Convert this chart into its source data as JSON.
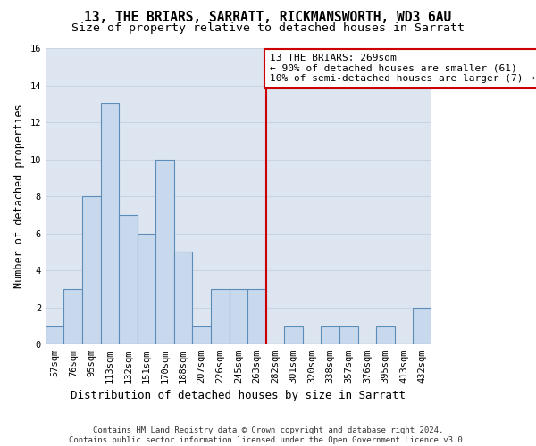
{
  "title": "13, THE BRIARS, SARRATT, RICKMANSWORTH, WD3 6AU",
  "subtitle": "Size of property relative to detached houses in Sarratt",
  "xlabel": "Distribution of detached houses by size in Sarratt",
  "ylabel": "Number of detached properties",
  "categories": [
    "57sqm",
    "76sqm",
    "95sqm",
    "113sqm",
    "132sqm",
    "151sqm",
    "170sqm",
    "188sqm",
    "207sqm",
    "226sqm",
    "245sqm",
    "263sqm",
    "282sqm",
    "301sqm",
    "320sqm",
    "338sqm",
    "357sqm",
    "376sqm",
    "395sqm",
    "413sqm",
    "432sqm"
  ],
  "values": [
    1,
    3,
    8,
    13,
    7,
    6,
    10,
    5,
    1,
    3,
    3,
    3,
    0,
    1,
    0,
    1,
    1,
    0,
    1,
    0,
    2
  ],
  "bar_color": "#c9d9ed",
  "bar_edge_color": "#5b8db8",
  "vline_x": 11.5,
  "vline_color": "#cc0000",
  "annotation_line1": "13 THE BRIARS: 269sqm",
  "annotation_line2": "← 90% of detached houses are smaller (61)",
  "annotation_line3": "10% of semi-detached houses are larger (7) →",
  "annotation_box_color": "#cc0000",
  "ylim": [
    0,
    16
  ],
  "yticks": [
    0,
    2,
    4,
    6,
    8,
    10,
    12,
    14,
    16
  ],
  "background_color": "#dde5f0",
  "grid_color": "#c8d4e3",
  "fig_background": "#ffffff",
  "footnote": "Contains HM Land Registry data © Crown copyright and database right 2024.\nContains public sector information licensed under the Open Government Licence v3.0.",
  "title_fontsize": 10.5,
  "subtitle_fontsize": 9.5,
  "xlabel_fontsize": 9,
  "ylabel_fontsize": 8.5,
  "tick_fontsize": 7.5,
  "annotation_fontsize": 8,
  "footnote_fontsize": 6.5
}
